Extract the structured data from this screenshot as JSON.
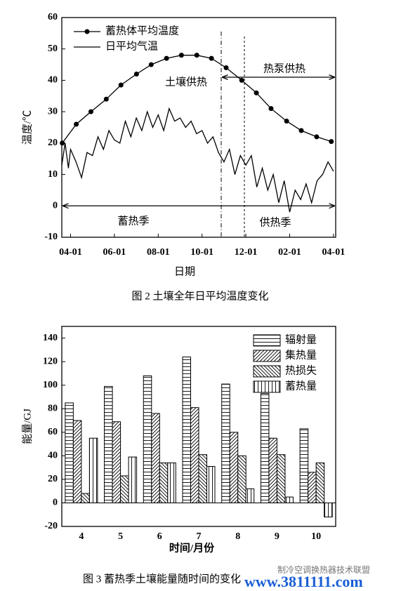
{
  "chart_data": [
    {
      "type": "line",
      "ylabel": "温度/℃",
      "xlabel": "日期",
      "xlim": [
        -0.4,
        12.1
      ],
      "ylim": [
        -10,
        60
      ],
      "xticks": [
        {
          "value": 0,
          "label": "04-01"
        },
        {
          "value": 2,
          "label": "06-01"
        },
        {
          "value": 4,
          "label": "08-01"
        },
        {
          "value": 6,
          "label": "10-01"
        },
        {
          "value": 8,
          "label": "12-01"
        },
        {
          "value": 10,
          "label": "02-01"
        },
        {
          "value": 12,
          "label": "04-01"
        }
      ],
      "yticks": [
        -10,
        0,
        10,
        20,
        30,
        40,
        50,
        60
      ],
      "legend": "upper left",
      "annotations": [
        "土壤供热",
        "热泵供热",
        "蓄热季",
        "供热季"
      ],
      "series": [
        {
          "name": "蓄热体平均温度",
          "color": "#000000",
          "markers": true,
          "x": [
            -0.38,
            0.26,
            0.93,
            1.63,
            2.3,
            3.01,
            3.68,
            4.38,
            5.06,
            5.76,
            6.43,
            7.1,
            7.81,
            8.48,
            9.15,
            9.86,
            10.53,
            11.23,
            11.9
          ],
          "values": [
            20,
            26,
            30,
            34,
            38.5,
            42,
            45,
            47,
            48,
            48,
            47,
            44,
            40,
            36,
            31,
            27,
            24,
            22,
            20.5
          ]
        },
        {
          "name": "日平均气温",
          "color": "#000000",
          "markers": false,
          "x": [
            -0.4,
            -0.25,
            -0.1,
            0,
            0.25,
            0.5,
            0.75,
            1,
            1.25,
            1.5,
            1.75,
            2,
            2.25,
            2.5,
            2.75,
            3,
            3.25,
            3.5,
            3.75,
            4,
            4.25,
            4.5,
            4.75,
            5,
            5.25,
            5.5,
            5.75,
            6,
            6.25,
            6.5,
            6.75,
            7,
            7.25,
            7.5,
            7.75,
            8,
            8.25,
            8.5,
            8.75,
            9,
            9.25,
            9.5,
            9.75,
            10,
            10.25,
            10.5,
            10.75,
            11,
            11.25,
            11.5,
            11.75,
            12
          ],
          "values": [
            13,
            20,
            12,
            18,
            14,
            9,
            17,
            16,
            22,
            18,
            24,
            21,
            20,
            27,
            22,
            28,
            24,
            30,
            25,
            29,
            24,
            31,
            27,
            28,
            25,
            27,
            23,
            24,
            20,
            22,
            17,
            14,
            18,
            10,
            16,
            13,
            16,
            6,
            12,
            5,
            10,
            1,
            8,
            -2,
            5,
            2,
            7,
            1,
            8,
            10,
            14,
            11
          ]
        }
      ]
    },
    {
      "type": "bar",
      "ylabel": "能量/GJ",
      "xlabel": "时间/月份",
      "categories": [
        "4",
        "5",
        "6",
        "7",
        "8",
        "9",
        "10"
      ],
      "ylim": [
        -20,
        150
      ],
      "yticks": [
        -20,
        0,
        20,
        40,
        60,
        80,
        100,
        120,
        140
      ],
      "legend": "upper right",
      "series": [
        {
          "name": "辐射量",
          "color": "#000000",
          "hatch": "horizontal",
          "values": [
            85,
            99,
            108,
            124,
            101,
            93,
            63
          ]
        },
        {
          "name": "集热量",
          "color": "#000000",
          "hatch": "forward",
          "values": [
            70,
            69,
            76,
            81,
            60,
            55,
            26
          ]
        },
        {
          "name": "热损失",
          "color": "#000000",
          "hatch": "backward",
          "values": [
            8,
            23,
            34,
            41,
            40,
            41,
            34
          ]
        },
        {
          "name": "蓄热量",
          "color": "#000000",
          "hatch": "vertical",
          "values": [
            55,
            39,
            34,
            31,
            12,
            5,
            -12
          ]
        }
      ]
    }
  ],
  "captions": [
    "图 2  土壤全年日平均温度变化",
    "图 3  蓄热季土壤能量随时间的变化"
  ],
  "watermark": [
    "制冷空调换热器技术联盟",
    "www.3811111.com"
  ]
}
